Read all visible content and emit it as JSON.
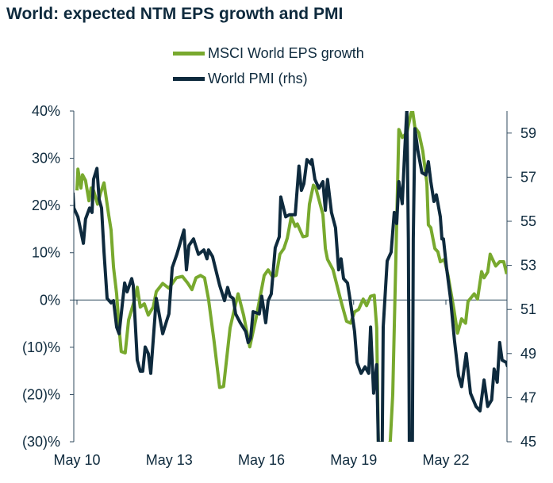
{
  "chart_data": {
    "type": "line",
    "title": "World: expected NTM EPS growth and PMI",
    "colors": {
      "eps": "#78a92e",
      "pmi": "#0e2a3d",
      "axis": "#2f4a5e"
    },
    "x_ticks": [
      {
        "t": 2010.33,
        "label": "May 10"
      },
      {
        "t": 2013.33,
        "label": "May 13"
      },
      {
        "t": 2016.33,
        "label": "May 16"
      },
      {
        "t": 2019.33,
        "label": "May 19"
      },
      {
        "t": 2022.33,
        "label": "May 22"
      }
    ],
    "y_left": {
      "range": [
        -30,
        40
      ],
      "ticks": [
        40,
        30,
        20,
        10,
        0,
        -10,
        -20,
        -30
      ],
      "labels": [
        "40%",
        "30%",
        "20%",
        "10%",
        "0%",
        "(10)%",
        "(20)%",
        "(30)%"
      ]
    },
    "y_right": {
      "range": [
        45,
        60
      ],
      "ticks": [
        59,
        57,
        55,
        53,
        51,
        49,
        47,
        45
      ],
      "labels": [
        "59",
        "57",
        "55",
        "53",
        "51",
        "49",
        "47",
        "45"
      ]
    },
    "grid": false,
    "legend_placement": "top-center",
    "series": [
      {
        "name": "MSCI World EPS growth",
        "axis": "left",
        "x": [
          2010.33,
          2010.36,
          2010.46,
          2010.51,
          2010.61,
          2010.72,
          2010.79,
          2010.87,
          2011.0,
          2011.1,
          2011.21,
          2011.36,
          2011.44,
          2011.52,
          2011.62,
          2011.7,
          2011.77,
          2011.9,
          2012.01,
          2012.21,
          2012.29,
          2012.39,
          2012.52,
          2012.65,
          2012.81,
          2012.91,
          2013.12,
          2013.32,
          2013.56,
          2013.76,
          2013.94,
          2014.07,
          2014.2,
          2014.35,
          2014.48,
          2014.61,
          2014.79,
          2014.97,
          2015.1,
          2015.31,
          2015.49,
          2015.57,
          2015.75,
          2015.95,
          2016.16,
          2016.42,
          2016.55,
          2016.68,
          2016.81,
          2016.93,
          2017.06,
          2017.17,
          2017.3,
          2017.43,
          2017.5,
          2017.68,
          2017.81,
          2017.89,
          2018.02,
          2018.1,
          2018.33,
          2018.41,
          2018.48,
          2018.66,
          2018.92,
          2019.1,
          2019.23,
          2019.36,
          2019.49,
          2019.64,
          2019.75,
          2019.88,
          2020.0,
          2020.08,
          2020.13,
          2020.21,
          2020.47,
          2020.52,
          2020.6,
          2020.73,
          2020.8,
          2020.91,
          2021.06,
          2021.19,
          2021.24,
          2021.32,
          2021.45,
          2021.58,
          2021.71,
          2021.76,
          2021.84,
          2021.97,
          2022.07,
          2022.15,
          2022.28,
          2022.4,
          2022.59,
          2022.71,
          2022.84,
          2022.97,
          2023.05,
          2023.25,
          2023.36,
          2023.49,
          2023.57,
          2023.69,
          2023.77,
          2023.95,
          2024.08,
          2024.21,
          2024.31
        ],
        "y": [
          23.2,
          27.7,
          23.7,
          26.5,
          25.3,
          21.0,
          23.7,
          23.2,
          20.3,
          22.7,
          24.8,
          18.1,
          14.8,
          6.9,
          1.3,
          -5.9,
          -10.9,
          -11.2,
          -4.2,
          0.2,
          2.7,
          -1.5,
          -0.8,
          -3.2,
          -1.5,
          1.8,
          3.5,
          2.5,
          4.7,
          5.0,
          3.5,
          2.2,
          4.7,
          5.2,
          4.7,
          0.2,
          -8.7,
          -18.5,
          -18.3,
          -5.9,
          -0.8,
          1.3,
          -3.2,
          -9.9,
          -3.7,
          5.2,
          6.4,
          5.0,
          5.2,
          9.7,
          10.9,
          13.1,
          17.6,
          15.6,
          16.1,
          13.4,
          13.6,
          20.3,
          24.3,
          23.7,
          18.1,
          10.9,
          8.6,
          6.4,
          -0.3,
          -4.5,
          -4.9,
          -2.5,
          -2.0,
          0.2,
          -1.2,
          0.8,
          1.0,
          -5.9,
          -30,
          -40,
          -40,
          -30,
          -20.0,
          16.4,
          36.1,
          34.4,
          35.4,
          39.4,
          41.6,
          36.6,
          35.4,
          31.5,
          24.8,
          15.9,
          15.3,
          10.9,
          10.2,
          8.1,
          8.6,
          5.2,
          -2.0,
          -7.0,
          -4.0,
          -4.9,
          -0.3,
          1.3,
          0.2,
          6.0,
          4.7,
          5.9,
          9.7,
          7.2,
          8.1,
          8.1,
          5.5
        ]
      },
      {
        "name": "World PMI (rhs)",
        "axis": "right",
        "x": [
          2010.2,
          2010.23,
          2010.36,
          2010.54,
          2010.61,
          2010.74,
          2010.82,
          2010.87,
          2010.98,
          2011.05,
          2011.13,
          2011.21,
          2011.31,
          2011.44,
          2011.52,
          2011.62,
          2011.7,
          2011.88,
          2011.96,
          2012.11,
          2012.16,
          2012.29,
          2012.39,
          2012.47,
          2012.55,
          2012.65,
          2012.73,
          2012.91,
          2013.12,
          2013.25,
          2013.32,
          2013.43,
          2013.58,
          2013.81,
          2013.89,
          2013.97,
          2014.12,
          2014.28,
          2014.46,
          2014.56,
          2014.61,
          2014.74,
          2014.97,
          2015.13,
          2015.23,
          2015.31,
          2015.41,
          2015.49,
          2015.64,
          2015.82,
          2015.9,
          2015.98,
          2016.06,
          2016.26,
          2016.34,
          2016.47,
          2016.55,
          2016.65,
          2016.78,
          2016.91,
          2016.96,
          2017.12,
          2017.24,
          2017.43,
          2017.55,
          2017.63,
          2017.71,
          2017.81,
          2017.94,
          2017.97,
          2018.07,
          2018.2,
          2018.33,
          2018.41,
          2018.48,
          2018.61,
          2018.74,
          2018.84,
          2018.92,
          2019.0,
          2019.13,
          2019.23,
          2019.36,
          2019.44,
          2019.57,
          2019.7,
          2019.82,
          2019.88,
          2019.98,
          2020.08,
          2020.13,
          2020.19,
          2020.24,
          2020.26,
          2020.29,
          2020.42,
          2020.55,
          2020.65,
          2020.73,
          2020.8,
          2020.91,
          2020.99,
          2021.06,
          2021.11,
          2021.14,
          2021.19,
          2021.24,
          2021.27,
          2021.32,
          2021.42,
          2021.55,
          2021.68,
          2021.76,
          2021.84,
          2021.94,
          2022.02,
          2022.15,
          2022.2,
          2022.25,
          2022.35,
          2022.48,
          2022.61,
          2022.74,
          2022.84,
          2022.99,
          2023.13,
          2023.31,
          2023.44,
          2023.57,
          2023.69,
          2023.82,
          2023.9,
          2024.0,
          2024.08,
          2024.16,
          2024.29,
          2024.34
        ],
        "y": [
          56.3,
          55.6,
          55.2,
          54.0,
          55.1,
          55.6,
          55.4,
          56.9,
          57.4,
          56.0,
          55.6,
          53.6,
          51.5,
          51.3,
          51.4,
          50.2,
          49.9,
          52.2,
          51.8,
          52.4,
          52.1,
          48.7,
          48.2,
          48.2,
          49.3,
          49.0,
          48.1,
          51.5,
          49.9,
          50.5,
          50.8,
          52.9,
          53.5,
          54.6,
          52.8,
          53.9,
          54.2,
          53.5,
          53.7,
          53.3,
          53.7,
          53.4,
          52.1,
          51.4,
          52.0,
          51.6,
          51.5,
          50.8,
          50.4,
          50.0,
          49.5,
          49.7,
          50.9,
          50.8,
          51.6,
          50.4,
          51.4,
          51.7,
          53.8,
          54.3,
          56.1,
          55.2,
          55.3,
          55.3,
          57.5,
          56.4,
          56.7,
          57.8,
          57.6,
          57.8,
          56.9,
          56.5,
          56.8,
          55.5,
          56.9,
          55.4,
          54.7,
          52.8,
          53.3,
          52.4,
          52.2,
          51.3,
          50.0,
          48.6,
          48.1,
          48.4,
          48.1,
          50.2,
          47.2,
          48.5,
          45.0,
          42.0,
          42.0,
          45.0,
          50.2,
          53.2,
          53.6,
          55.4,
          54.9,
          56.8,
          55.8,
          58.2,
          60.4,
          54.2,
          45.0,
          42.0,
          45.0,
          54.2,
          59.2,
          58.2,
          57.2,
          57.1,
          57.7,
          56.8,
          55.9,
          56.2,
          55.2,
          54.2,
          54.2,
          52.9,
          51.5,
          49.6,
          48.0,
          47.5,
          49.0,
          47.2,
          46.6,
          46.4,
          47.8,
          46.6,
          46.9,
          48.3,
          47.7,
          49.5,
          48.7,
          48.6,
          48.4
        ]
      }
    ]
  }
}
